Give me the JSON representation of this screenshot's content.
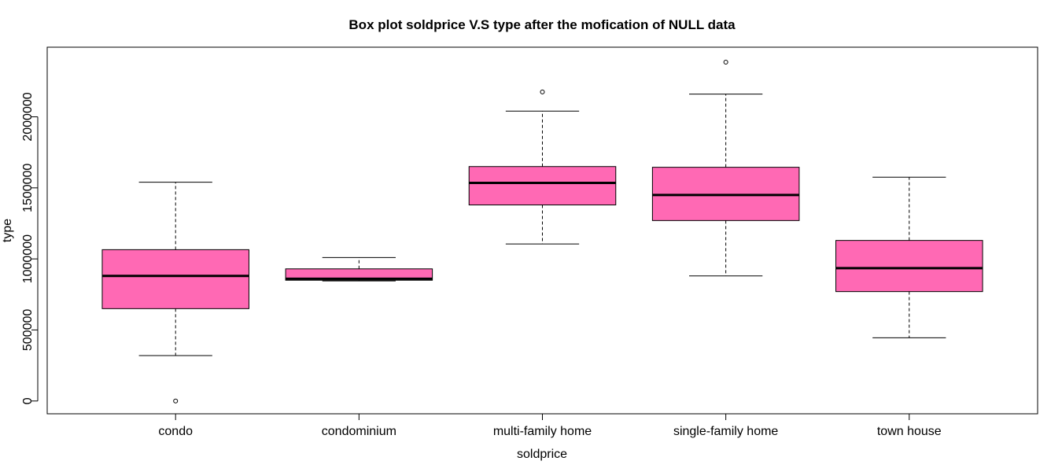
{
  "chart_data": {
    "type": "box",
    "title": "Box plot soldprice V.S type after the mofication of NULL data",
    "xlabel": "soldprice",
    "ylabel": "type",
    "ylim": [
      -90000,
      2490000
    ],
    "yticks": [
      0,
      500000,
      1000000,
      1500000,
      2000000
    ],
    "ytick_labels": [
      "0",
      "500000",
      "1000000",
      "1500000",
      "2000000"
    ],
    "categories": [
      "condo",
      "condominium",
      "multi-family home",
      "single-family home",
      "town house"
    ],
    "boxes": [
      {
        "category": "condo",
        "whisker_low": 320000,
        "q1": 650000,
        "median": 880000,
        "q3": 1065000,
        "whisker_high": 1540000,
        "outliers": [
          0
        ]
      },
      {
        "category": "condominium",
        "whisker_low": 845000,
        "q1": 850000,
        "median": 860000,
        "q3": 930000,
        "whisker_high": 1010000,
        "outliers": []
      },
      {
        "category": "multi-family home",
        "whisker_low": 1105000,
        "q1": 1380000,
        "median": 1535000,
        "q3": 1650000,
        "whisker_high": 2040000,
        "outliers": [
          2175000
        ]
      },
      {
        "category": "single-family home",
        "whisker_low": 880000,
        "q1": 1270000,
        "median": 1450000,
        "q3": 1645000,
        "whisker_high": 2160000,
        "outliers": [
          2385000
        ]
      },
      {
        "category": "town house",
        "whisker_low": 445000,
        "q1": 770000,
        "median": 935000,
        "q3": 1130000,
        "whisker_high": 1575000,
        "outliers": []
      }
    ],
    "box_fill": "#ff69b4",
    "grid": false,
    "legend": "none"
  }
}
